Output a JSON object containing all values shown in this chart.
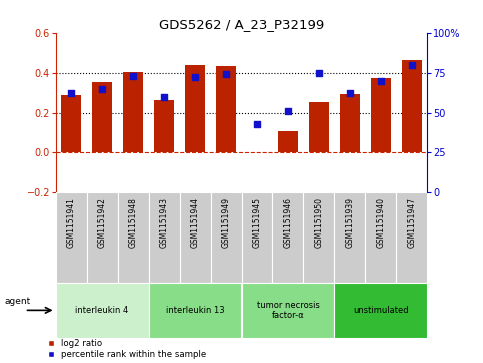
{
  "title": "GDS5262 / A_23_P32199",
  "samples": [
    "GSM1151941",
    "GSM1151942",
    "GSM1151948",
    "GSM1151943",
    "GSM1151944",
    "GSM1151949",
    "GSM1151945",
    "GSM1151946",
    "GSM1151950",
    "GSM1151939",
    "GSM1151940",
    "GSM1151947"
  ],
  "log2_ratio": [
    0.29,
    0.355,
    0.405,
    0.265,
    0.44,
    0.435,
    0.002,
    0.105,
    0.255,
    0.295,
    0.375,
    0.465
  ],
  "percentile_rank": [
    62,
    65,
    73,
    60,
    72,
    74,
    43,
    51,
    75,
    62,
    70,
    80
  ],
  "bar_color": "#bb2200",
  "dot_color": "#1111cc",
  "agent_groups": [
    {
      "label": "interleukin 4",
      "start": 0,
      "end": 3,
      "color": "#ccf0cc"
    },
    {
      "label": "interleukin 13",
      "start": 3,
      "end": 6,
      "color": "#88dd88"
    },
    {
      "label": "tumor necrosis\nfactor-α",
      "start": 6,
      "end": 9,
      "color": "#88dd88"
    },
    {
      "label": "unstimulated",
      "start": 9,
      "end": 12,
      "color": "#33bb33"
    }
  ],
  "ylim_left": [
    -0.2,
    0.6
  ],
  "ylim_right": [
    0,
    100
  ],
  "yticks_left": [
    -0.2,
    0.0,
    0.2,
    0.4,
    0.6
  ],
  "yticks_right": [
    0,
    25,
    50,
    75,
    100
  ],
  "hlines_dotted": [
    0.2,
    0.4
  ],
  "hline_zero": 0.0,
  "bar_color_left_spine": "#cc2200",
  "ylabel_right_color": "#0000cc",
  "bg_color": "#ffffff",
  "plot_bg": "#ffffff",
  "sample_box_color": "#cccccc",
  "legend_items": [
    "log2 ratio",
    "percentile rank within the sample"
  ]
}
